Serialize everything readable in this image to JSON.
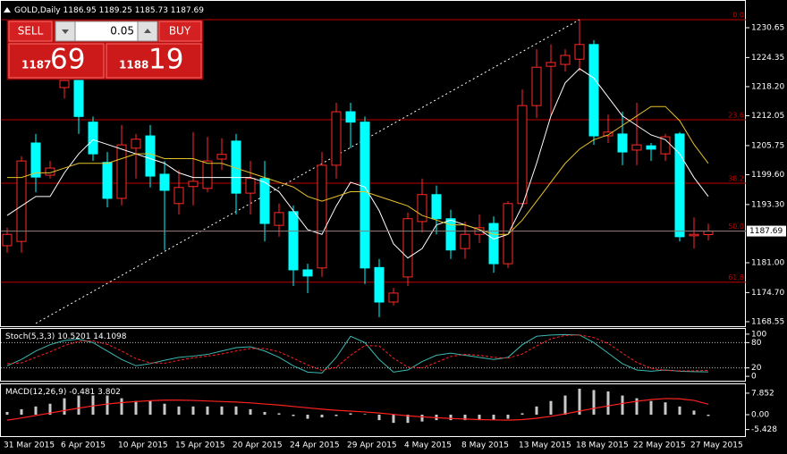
{
  "chart_data": [
    {
      "type": "candlestick",
      "title": "GOLD,Daily",
      "categories": [
        "31 Mar 2015",
        null,
        null,
        null,
        "6 Apr 2015",
        null,
        null,
        null,
        "10 Apr 2015",
        null,
        null,
        null,
        "15 Apr 2015",
        null,
        null,
        null,
        "20 Apr 2015",
        null,
        null,
        null,
        "24 Apr 2015",
        null,
        null,
        null,
        "29 Apr 2015",
        null,
        null,
        null,
        "4 May 2015",
        null,
        null,
        null,
        "8 May 2015",
        null,
        null,
        null,
        "13 May 2015",
        null,
        null,
        null,
        "18 May 2015",
        null,
        null,
        null,
        "22 May 2015",
        null,
        null,
        null,
        "27 May 2015",
        null
      ],
      "open": [
        1184.6,
        1185.5,
        1206.3,
        1199.5,
        1218.0,
        1224.0,
        1210.7,
        1202.2,
        1194.6,
        1205.2,
        1207.8,
        1199.7,
        1193.5,
        1197.1,
        1196.7,
        1202.9,
        1206.7,
        1195.7,
        1198.8,
        1188.9,
        1191.8,
        1179.5,
        1179.9,
        1201.6,
        1212.9,
        1210.7,
        1180.0,
        1172.7,
        1178.0,
        1189.7,
        1195.4,
        1190.3,
        1184.0,
        1187.0,
        1189.3,
        1180.8,
        1193.5,
        1214.2,
        1222.5,
        1222.9,
        1224.0,
        1227.1,
        1207.8,
        1208.2,
        1204.8,
        1205.7,
        1204.0,
        1208.2,
        1186.7,
        1186.95
      ],
      "high": [
        1188.4,
        1203.5,
        1208.2,
        1202.5,
        1221.4,
        1226.1,
        1211.9,
        1204.4,
        1210.1,
        1208.2,
        1210.1,
        1202.5,
        1200.6,
        1208.6,
        1207.6,
        1207.3,
        1208.2,
        1202.5,
        1202.5,
        1193.5,
        1193.1,
        1180.8,
        1204.4,
        1214.8,
        1214.8,
        1211.9,
        1181.8,
        1175.7,
        1191.6,
        1198.8,
        1197.3,
        1192.2,
        1189.7,
        1191.2,
        1190.8,
        1194.0,
        1217.6,
        1226.1,
        1227.1,
        1226.1,
        1232.35,
        1228.0,
        1212.3,
        1212.9,
        1214.8,
        1206.3,
        1208.2,
        1208.6,
        1190.6,
        1189.25
      ],
      "low": [
        1183.1,
        1183.1,
        1195.9,
        1198.8,
        1215.7,
        1208.2,
        1202.5,
        1192.7,
        1193.1,
        1198.8,
        1196.9,
        1183.7,
        1191.2,
        1193.1,
        1195.9,
        1200.6,
        1191.2,
        1191.2,
        1185.5,
        1186.5,
        1176.1,
        1174.6,
        1178.0,
        1198.8,
        1205.2,
        1176.5,
        1169.5,
        1172.0,
        1176.1,
        1187.4,
        1187.0,
        1181.8,
        1181.8,
        1185.2,
        1178.9,
        1179.9,
        1192.7,
        1211.6,
        1211.9,
        1221.4,
        1221.4,
        1205.9,
        1206.3,
        1201.6,
        1201.6,
        1202.5,
        1202.5,
        1185.5,
        1184.0,
        1185.73
      ],
      "close": [
        1187.0,
        1202.5,
        1199.1,
        1201.0,
        1219.5,
        1211.9,
        1204.0,
        1194.6,
        1205.9,
        1207.1,
        1199.3,
        1196.3,
        1196.9,
        1198.2,
        1202.5,
        1203.9,
        1195.7,
        1198.8,
        1189.3,
        1191.6,
        1179.5,
        1178.2,
        1201.6,
        1212.9,
        1210.7,
        1179.9,
        1172.7,
        1174.6,
        1190.3,
        1195.4,
        1190.3,
        1183.7,
        1187.0,
        1188.4,
        1180.8,
        1193.5,
        1214.2,
        1222.3,
        1223.3,
        1224.8,
        1227.1,
        1207.8,
        1208.6,
        1204.4,
        1205.9,
        1205.0,
        1207.6,
        1186.5,
        1187.0,
        1187.69
      ],
      "colors": {
        "up": "#ff2a2a",
        "down": "#00ffff"
      },
      "moving_averages": [
        {
          "color": "#ffffff",
          "values": [
            1191,
            1193,
            1195,
            1195,
            1200,
            1204,
            1207,
            1206,
            1205,
            1204,
            1203,
            1202,
            1200,
            1199,
            1199,
            1199,
            1199,
            1199,
            1198,
            1196,
            1192,
            1188,
            1187,
            1193,
            1198,
            1197,
            1192,
            1185,
            1182,
            1184,
            1189,
            1190,
            1189,
            1188,
            1186,
            1187,
            1193,
            1202,
            1212,
            1219,
            1222,
            1220,
            1216,
            1212,
            1210,
            1208,
            1207,
            1204,
            1199,
            1195
          ]
        },
        {
          "color": "#e6c229",
          "values": [
            1199,
            1199,
            1200,
            1200,
            1201,
            1202,
            1202,
            1202,
            1203,
            1204,
            1204,
            1203,
            1203,
            1203,
            1202,
            1202,
            1201,
            1200,
            1199,
            1198,
            1197,
            1195,
            1194,
            1195,
            1196,
            1196,
            1195,
            1194,
            1193,
            1191,
            1190,
            1189,
            1189,
            1188,
            1187,
            1187,
            1190,
            1194,
            1198,
            1202,
            1205,
            1207,
            1208,
            1210,
            1212,
            1214,
            1214,
            1211,
            1206,
            1202
          ]
        }
      ],
      "ylim": [
        1167.6,
        1236.5
      ],
      "yticks": [
        1230.65,
        1224.35,
        {
          "value": 1218.2,
          "label": "1218.20"
        },
        1212.05,
        1205.75,
        {
          "value": 1199.6,
          "label": "1199.60"
        },
        {
          "value": 1193.3,
          "label": "1193.30"
        },
        {
          "value": 1181.0,
          "label": "1181.00"
        },
        {
          "value": 1174.7,
          "label": "1174.70"
        },
        1168.55
      ],
      "fib_levels": [
        {
          "value": 1232.35,
          "label": "0.0"
        },
        {
          "value": 1211.2,
          "label": "23.6"
        },
        {
          "value": 1197.8,
          "label": "38.2"
        },
        {
          "value": 1187.7,
          "label": "50.0"
        },
        {
          "value": 1176.9,
          "label": "61.8"
        }
      ],
      "fib_color": "#c00000",
      "trendline": {
        "start_index": 2,
        "start_price": 1168.2,
        "end_index": 40,
        "end_price": 1232.35
      }
    },
    {
      "type": "stochastic",
      "title": "Stoch(5,3,3)",
      "series": [
        {
          "color": "#3cb8b0",
          "values": [
            25,
            40,
            60,
            75,
            85,
            88,
            80,
            60,
            40,
            25,
            30,
            38,
            45,
            48,
            52,
            60,
            68,
            70,
            60,
            45,
            25,
            10,
            8,
            45,
            95,
            80,
            40,
            10,
            15,
            35,
            50,
            55,
            50,
            45,
            40,
            45,
            75,
            95,
            98,
            99,
            98,
            80,
            55,
            30,
            15,
            12,
            15,
            12,
            11,
            10.5201
          ]
        },
        {
          "color": "#ff2020",
          "dashed": true,
          "values": [
            30,
            32,
            45,
            58,
            73,
            83,
            84,
            76,
            60,
            42,
            32,
            31,
            38,
            44,
            48,
            53,
            60,
            66,
            66,
            58,
            43,
            27,
            14,
            21,
            50,
            73,
            72,
            43,
            22,
            20,
            33,
            47,
            52,
            50,
            45,
            43,
            53,
            72,
            89,
            97,
            98,
            92,
            78,
            55,
            33,
            19,
            14,
            13,
            13,
            14.1098
          ]
        }
      ],
      "ylim": [
        -10.4,
        112.5
      ],
      "yticks": [
        0,
        20,
        80,
        100
      ],
      "levels": [
        20,
        80
      ]
    },
    {
      "type": "macd",
      "title": "MACD(12,26,9)",
      "histogram": [
        1,
        2,
        3,
        4,
        6,
        7,
        7,
        7,
        6,
        5,
        5,
        4,
        3,
        3,
        3,
        3,
        3,
        2,
        1,
        0.5,
        -0.5,
        -1.5,
        -1,
        -0.5,
        0.5,
        0.2,
        -2,
        -3,
        -3,
        -2.5,
        -2,
        -2,
        -2,
        -2,
        -2,
        -1.5,
        0.5,
        3,
        5,
        7,
        9.5,
        9,
        8.5,
        7,
        6,
        5,
        4.5,
        3,
        1.5,
        -0.481
      ],
      "histogram_color": "#c8c8c8",
      "signal": [
        -2.0,
        -1.2,
        -0.3,
        0.6,
        1.5,
        2.4,
        3.2,
        3.9,
        4.4,
        4.8,
        5.1,
        5.3,
        5.3,
        5.2,
        5.0,
        4.8,
        4.6,
        4.3,
        3.9,
        3.5,
        3.0,
        2.5,
        2.0,
        1.6,
        1.3,
        1.0,
        0.6,
        0.1,
        -0.4,
        -0.8,
        -1.1,
        -1.4,
        -1.6,
        -1.8,
        -1.9,
        -2.0,
        -1.8,
        -1.3,
        -0.6,
        0.3,
        1.3,
        2.3,
        3.2,
        4.1,
        4.9,
        5.5,
        5.9,
        5.8,
        5.2,
        3.802
      ],
      "signal_color": "#ff2020",
      "ylim": [
        -7.84,
        11.1
      ],
      "yticks": [
        7.852,
        {
          "value": 0,
          "label": "0.00"
        },
        -5.428
      ]
    }
  ],
  "trade_panel": {
    "sell": "SELL",
    "lot": 0.05,
    "buy": "BUY",
    "bid_big": "1187",
    "bid_small": "69",
    "ask_big": "1188",
    "ask_small": "19"
  }
}
